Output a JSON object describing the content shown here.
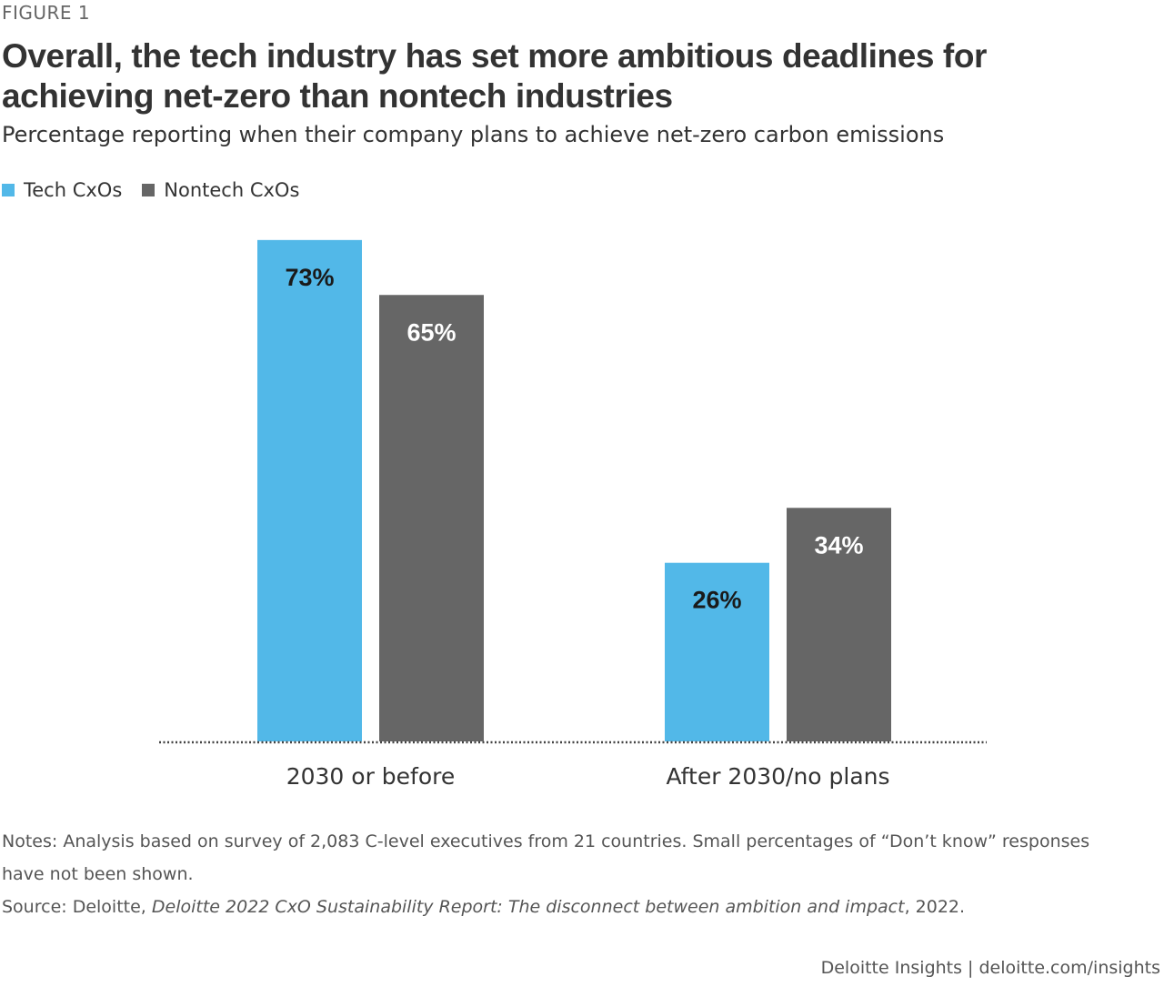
{
  "figure_label": "FIGURE 1",
  "title": "Overall, the tech industry has set more ambitious deadlines for achieving net-zero than nontech industries",
  "subtitle": "Percentage reporting when their company plans to achieve net-zero carbon emissions",
  "colors": {
    "tech": "#52b8e8",
    "nontech": "#666666"
  },
  "chart_data": {
    "type": "bar",
    "categories": [
      "2030 or before",
      "After 2030/no plans"
    ],
    "series": [
      {
        "name": "Tech CxOs",
        "values": [
          73,
          26
        ],
        "labels": [
          "73%",
          "26%"
        ]
      },
      {
        "name": "Nontech CxOs",
        "values": [
          65,
          34
        ],
        "labels": [
          "65%",
          "34%"
        ]
      }
    ],
    "ylim": [
      0,
      100
    ],
    "grid": false,
    "legend": "top-left",
    "baseline": "dotted"
  },
  "notes": {
    "line1": "Notes: Analysis based on survey of 2,083 C-level executives from 21 countries. Small percentages of “Don’t know” responses have not been shown.",
    "source_prefix": "Source: Deloitte, ",
    "source_title": "Deloitte 2022 CxO Sustainability Report: The disconnect between ambition and impact",
    "source_suffix": ", 2022."
  },
  "footer": "Deloitte Insights | deloitte.com/insights"
}
